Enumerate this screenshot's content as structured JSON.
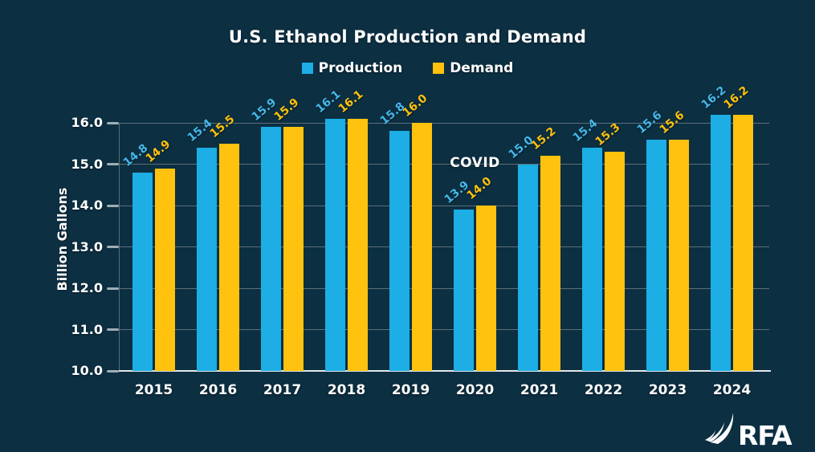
{
  "title": "U.S. Ethanol Production and Demand",
  "legend": {
    "production_label": "Production",
    "demand_label": "Demand"
  },
  "y_axis_title": "Billion Gallons",
  "annotation_text": "COVID",
  "logo_text": "RFA",
  "colors": {
    "background": "#0C2F42",
    "production": "#1CAEE4",
    "demand": "#FFC20E",
    "production_label": "#45B8E8",
    "demand_label": "#FFC20E",
    "gridline": "#5E6F78",
    "baseline": "#E3E7E9",
    "text": "#FFFFFF"
  },
  "chart_data": {
    "type": "bar",
    "title": "U.S. Ethanol Production and Demand",
    "categories": [
      "2015",
      "2016",
      "2017",
      "2018",
      "2019",
      "2020",
      "2021",
      "2022",
      "2023",
      "2024"
    ],
    "series": [
      {
        "name": "Production",
        "color": "#1CAEE4",
        "values": [
          14.8,
          15.4,
          15.9,
          16.1,
          15.8,
          13.9,
          15.0,
          15.4,
          15.6,
          16.2
        ]
      },
      {
        "name": "Demand",
        "color": "#FFC20E",
        "values": [
          14.9,
          15.5,
          15.9,
          16.1,
          16.0,
          14.0,
          15.2,
          15.3,
          15.6,
          16.2
        ]
      }
    ],
    "xlabel": "",
    "ylabel": "Billion Gallons",
    "ylim": [
      10.0,
      16.0
    ],
    "yticks": [
      {
        "value": 10.0,
        "label": "10.0"
      },
      {
        "value": 11.0,
        "label": "11.0"
      },
      {
        "value": 12.0,
        "label": "12.0"
      },
      {
        "value": 13.0,
        "label": "13.0"
      },
      {
        "value": 14.0,
        "label": "14.0"
      },
      {
        "value": 15.0,
        "label": "15.0"
      },
      {
        "value": 16.0,
        "label": "16.0"
      }
    ],
    "grid": true,
    "legend_position": "top",
    "value_labels": true,
    "annotations": [
      {
        "text": "COVID",
        "category": "2020"
      }
    ]
  }
}
